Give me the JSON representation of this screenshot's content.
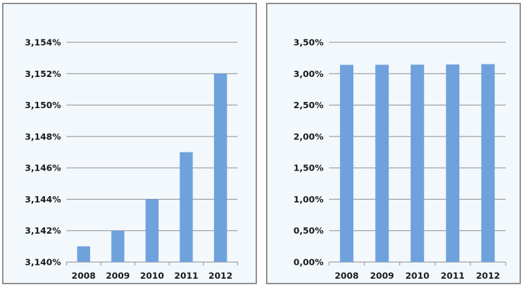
{
  "chart_data": [
    {
      "type": "bar",
      "categories": [
        "2008",
        "2009",
        "2010",
        "2011",
        "2012"
      ],
      "values": [
        3.141,
        3.142,
        3.144,
        3.147,
        3.152
      ],
      "yticks": [
        "3,140%",
        "3,142%",
        "3,144%",
        "3,146%",
        "3,148%",
        "3,150%",
        "3,152%",
        "3,154%"
      ],
      "ylim": [
        3.14,
        3.154
      ],
      "title": "",
      "xlabel": "",
      "ylabel": "",
      "grid": true,
      "bar_color": "#6fa2dc"
    },
    {
      "type": "bar",
      "categories": [
        "2008",
        "2009",
        "2010",
        "2011",
        "2012"
      ],
      "values": [
        3.141,
        3.142,
        3.144,
        3.147,
        3.152
      ],
      "yticks": [
        "0,00%",
        "0,50%",
        "1,00%",
        "1,50%",
        "2,00%",
        "2,50%",
        "3,00%",
        "3,50%"
      ],
      "ylim": [
        0,
        3.5
      ],
      "title": "",
      "xlabel": "",
      "ylabel": "",
      "grid": true,
      "bar_color": "#6fa2dc"
    }
  ]
}
